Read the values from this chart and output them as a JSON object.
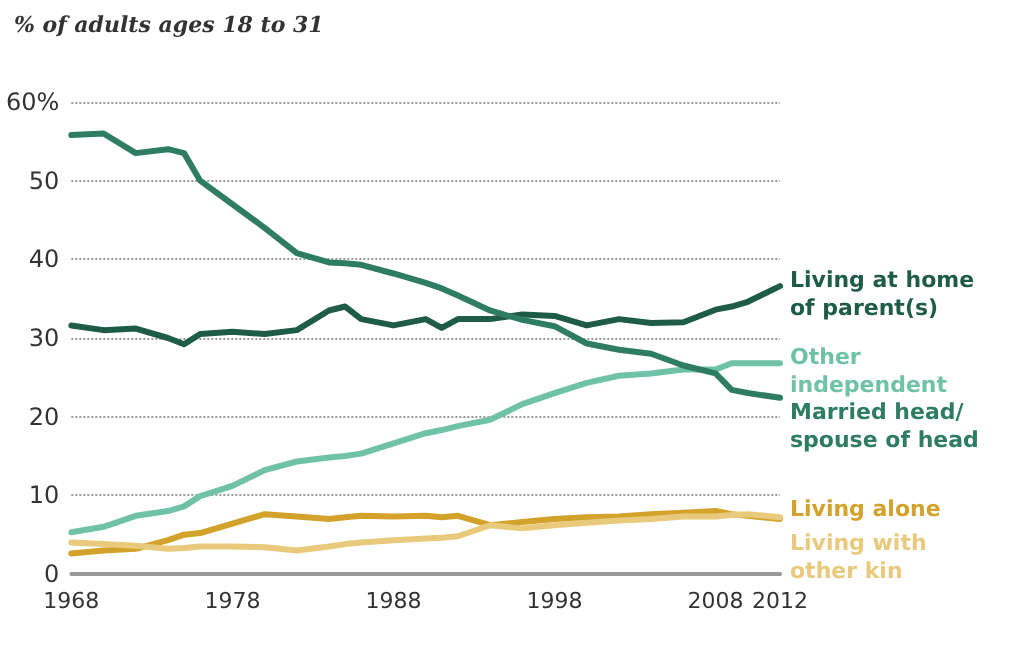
{
  "chart_data": {
    "type": "line",
    "title": "% of adults ages 18 to 31",
    "ylim": [
      0,
      60
    ],
    "yticks": [
      0,
      10,
      20,
      30,
      40,
      50,
      {
        "value": 60,
        "label": "60%"
      }
    ],
    "xlim": [
      1968,
      2012
    ],
    "xticks": [
      1968,
      1978,
      1988,
      1998,
      2008,
      2012
    ],
    "grid": "y",
    "legend": false,
    "marker": "none",
    "line_style": "solid",
    "x": [
      1968,
      1970,
      1972,
      1974,
      1975,
      1976,
      1978,
      1980,
      1982,
      1984,
      1985,
      1986,
      1988,
      1990,
      1991,
      1992,
      1994,
      1996,
      1998,
      2000,
      2002,
      2004,
      2006,
      2008,
      2009,
      2010,
      2012
    ],
    "series": [
      {
        "name": "Living at home of parent(s)",
        "color": "#1f5c47",
        "values": [
          31.6,
          31,
          31.2,
          30,
          29.2,
          30.5,
          30.8,
          30.5,
          31,
          33.5,
          34,
          32.4,
          31.6,
          32.4,
          31.3,
          32.4,
          32.4,
          33,
          32.8,
          31.6,
          32.4,
          31.9,
          32,
          33.6,
          34,
          34.6,
          36.6
        ]
      },
      {
        "name": "Other independent",
        "color": "#6fc2a8",
        "values": [
          5.3,
          6,
          7.4,
          8,
          8.6,
          9.9,
          11.2,
          13.2,
          14.3,
          14.8,
          15,
          15.3,
          16.6,
          17.9,
          18.3,
          18.8,
          19.6,
          21.6,
          23,
          24.3,
          25.2,
          25.5,
          26,
          26,
          26.8,
          26.8,
          26.8
        ]
      },
      {
        "name": "Married head/ spouse of head",
        "color": "#2e7d62",
        "values": [
          55.8,
          56,
          53.5,
          54,
          53.5,
          50,
          47,
          44,
          40.8,
          39.6,
          39.5,
          39.3,
          38.2,
          37,
          36.3,
          35.4,
          33.5,
          32.3,
          31.5,
          29.3,
          28.5,
          28,
          26.5,
          25.5,
          23.4,
          23,
          22.4
        ]
      },
      {
        "name": "Living alone",
        "color": "#d2a22a",
        "values": [
          2.6,
          3,
          3.2,
          4.3,
          5,
          5.2,
          6.4,
          7.6,
          7.3,
          7,
          7.2,
          7.4,
          7.3,
          7.4,
          7.2,
          7.4,
          6.2,
          6.6,
          7,
          7.2,
          7.3,
          7.6,
          7.8,
          8,
          7.6,
          7.4,
          7
        ]
      },
      {
        "name": "Living with other kin",
        "color": "#e9c97b",
        "values": [
          4,
          3.8,
          3.6,
          3.2,
          3.3,
          3.5,
          3.5,
          3.4,
          3,
          3.5,
          3.8,
          4,
          4.3,
          4.5,
          4.6,
          4.8,
          6.2,
          5.8,
          6.2,
          6.5,
          6.8,
          7,
          7.3,
          7.3,
          7.5,
          7.6,
          7.2
        ]
      }
    ]
  }
}
